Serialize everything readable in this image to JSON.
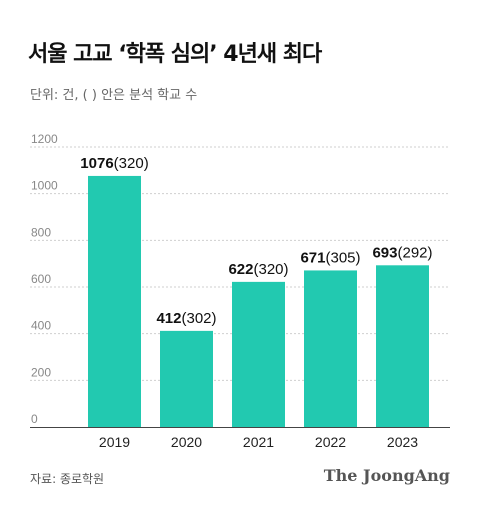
{
  "title": "서울 고교 ‘학폭 심의’ 4년새 최다",
  "subtitle": "단위: 건, ( ) 안은 분석 학교 수",
  "source": "자료: 종로학원",
  "brand": "The JoongAng",
  "colors": {
    "bar": "#22c9b0",
    "grid": "#cfcfcf",
    "axis": "#444444"
  },
  "chart_data": {
    "type": "bar",
    "title": "서울 고교 ‘학폭 심의’ 4년새 최다",
    "subtitle": "단위: 건, ( ) 안은 분석 학교 수",
    "xlabel": "",
    "ylabel": "",
    "categories": [
      "2019",
      "2020",
      "2021",
      "2022",
      "2023"
    ],
    "values": [
      1076,
      412,
      622,
      671,
      693
    ],
    "schools": [
      320,
      302,
      320,
      305,
      292
    ],
    "data_labels": [
      "1076(320)",
      "412(302)",
      "622(320)",
      "671(305)",
      "693(292)"
    ],
    "ylim": [
      0,
      1200
    ],
    "yticks": [
      0,
      200,
      400,
      600,
      800,
      1000,
      1200
    ],
    "grid": true
  }
}
